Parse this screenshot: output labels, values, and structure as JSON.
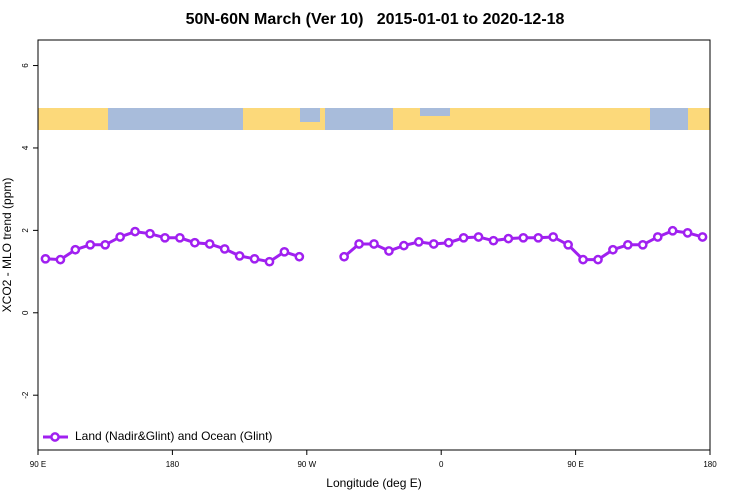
{
  "chart_data": {
    "type": "line",
    "title": "50N-60N March (Ver 10)   2015-01-01 to 2020-12-18",
    "x_label": "Longitude (deg E)",
    "y_label": "XCO2 - MLO trend (ppm)",
    "xlim": [
      90,
      540
    ],
    "ylim": [
      -3.33,
      6.62
    ],
    "xticks": [
      {
        "value": 90,
        "label": "90 E"
      },
      180,
      {
        "value": 270,
        "label": "90 W"
      },
      {
        "value": 360,
        "label": "0"
      },
      {
        "value": 450,
        "label": "90 E"
      },
      {
        "value": 540,
        "label": "180"
      }
    ],
    "yticks": [
      6,
      4,
      2,
      0,
      -2
    ],
    "grid": false,
    "legend": "bottom-left",
    "x": [
      95,
      105,
      115,
      125,
      135,
      145,
      155,
      165,
      175,
      185,
      195,
      205,
      215,
      225,
      235,
      245,
      255,
      265,
      275,
      285,
      295,
      305,
      315,
      325,
      335,
      345,
      355,
      365,
      375,
      385,
      395,
      405,
      415,
      425,
      435,
      445,
      455,
      465,
      475,
      485,
      495,
      505,
      515,
      525,
      535
    ],
    "series": [
      {
        "name": "Land (Nadir&Glint) and Ocean (Glint)",
        "color": "#a020f0",
        "values": [
          1.31,
          1.29,
          1.53,
          1.65,
          1.65,
          1.84,
          1.97,
          1.92,
          1.82,
          1.82,
          1.7,
          1.67,
          1.55,
          1.38,
          1.31,
          1.24,
          1.48,
          1.36,
          null,
          null,
          1.36,
          1.67,
          1.67,
          1.5,
          1.63,
          1.72,
          1.67,
          1.7,
          1.82,
          1.84,
          1.75,
          1.8,
          1.82,
          1.82,
          1.84,
          1.65,
          1.29,
          1.29,
          1.53,
          1.65,
          1.65,
          1.84,
          1.99,
          1.94,
          1.84
        ]
      }
    ]
  }
}
